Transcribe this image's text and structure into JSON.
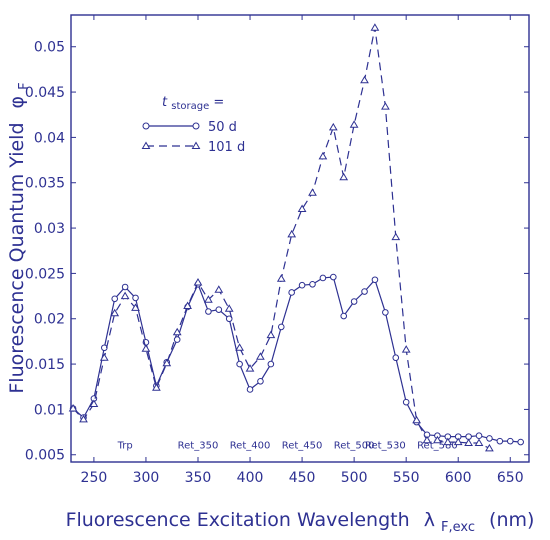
{
  "chart_data": {
    "type": "line",
    "title": "",
    "xlabel": "Fluorescence Excitation Wavelength",
    "xlabel_symbol": "λ",
    "xlabel_subscript": "F,exc",
    "xlabel_unit": "(nm)",
    "ylabel": "Fluorescence Quantum Yield",
    "ylabel_symbol": "φ",
    "ylabel_subscript": "F",
    "xlim": [
      228,
      668
    ],
    "ylim": [
      0.0042,
      0.0535
    ],
    "xticks": [
      250,
      300,
      350,
      400,
      450,
      500,
      550,
      600,
      650
    ],
    "yticks": [
      0.005,
      0.01,
      0.015,
      0.02,
      0.025,
      0.03,
      0.035,
      0.04,
      0.045,
      0.05
    ],
    "ytick_labels": [
      "0.005",
      "0.01",
      "0.015",
      "0.02",
      "0.025",
      "0.03",
      "0.035",
      "0.04",
      "0.045",
      "0.05"
    ],
    "grid": false,
    "color": "#2e3192",
    "legend": {
      "title_symbol": "t",
      "title_subscript": "storage",
      "title_suffix": " =",
      "placement": "upper-left-center"
    },
    "annotations": [
      {
        "text": "Trp",
        "x": 280
      },
      {
        "text": "Ret_350",
        "x": 350
      },
      {
        "text": "Ret_400",
        "x": 400
      },
      {
        "text": "Ret_450",
        "x": 450
      },
      {
        "text": "Ret_500",
        "x": 500
      },
      {
        "text": "Ret_530",
        "x": 530
      },
      {
        "text": "Ret_580",
        "x": 580
      }
    ],
    "annotation_y": 0.0057,
    "series": [
      {
        "name": "50 d",
        "line": "solid",
        "marker": "circle",
        "x": [
          230,
          240,
          250,
          260,
          270,
          280,
          290,
          300,
          310,
          320,
          330,
          340,
          350,
          360,
          370,
          380,
          390,
          400,
          410,
          420,
          430,
          440,
          450,
          460,
          470,
          480,
          490,
          500,
          510,
          520,
          530,
          540,
          550,
          560,
          570,
          580,
          590,
          600,
          610,
          620,
          630,
          640,
          650,
          660
        ],
        "y": [
          0.0101,
          0.0091,
          0.0112,
          0.0168,
          0.0222,
          0.0235,
          0.0223,
          0.0174,
          0.0126,
          0.0152,
          0.0177,
          0.0213,
          0.0238,
          0.0208,
          0.021,
          0.02,
          0.015,
          0.0122,
          0.0131,
          0.015,
          0.0191,
          0.0229,
          0.0237,
          0.0238,
          0.0245,
          0.0246,
          0.0203,
          0.0219,
          0.023,
          0.0243,
          0.0207,
          0.0157,
          0.0108,
          0.0086,
          0.0072,
          0.0071,
          0.007,
          0.007,
          0.007,
          0.0071,
          0.0068,
          0.0065,
          0.0065,
          0.0064
        ]
      },
      {
        "name": "101 d",
        "line": "dashed",
        "marker": "triangle",
        "x": [
          230,
          240,
          250,
          260,
          270,
          280,
          290,
          300,
          310,
          320,
          330,
          340,
          350,
          360,
          370,
          380,
          390,
          400,
          410,
          420,
          430,
          440,
          450,
          460,
          470,
          480,
          490,
          500,
          510,
          520,
          530,
          540,
          550,
          560,
          570,
          580,
          590,
          600,
          610,
          620,
          630
        ],
        "y": [
          0.0101,
          0.0089,
          0.0106,
          0.0157,
          0.0206,
          0.0225,
          0.0212,
          0.0167,
          0.0124,
          0.0151,
          0.0185,
          0.0214,
          0.024,
          0.0221,
          0.0232,
          0.0211,
          0.0168,
          0.0145,
          0.0158,
          0.0182,
          0.0244,
          0.0293,
          0.0321,
          0.0339,
          0.0379,
          0.0411,
          0.0356,
          0.0414,
          0.0463,
          0.0521,
          0.0434,
          0.029,
          0.0166,
          0.0088,
          0.0066,
          0.0066,
          0.0064,
          0.0064,
          0.0063,
          0.0063,
          0.0057
        ]
      }
    ]
  }
}
